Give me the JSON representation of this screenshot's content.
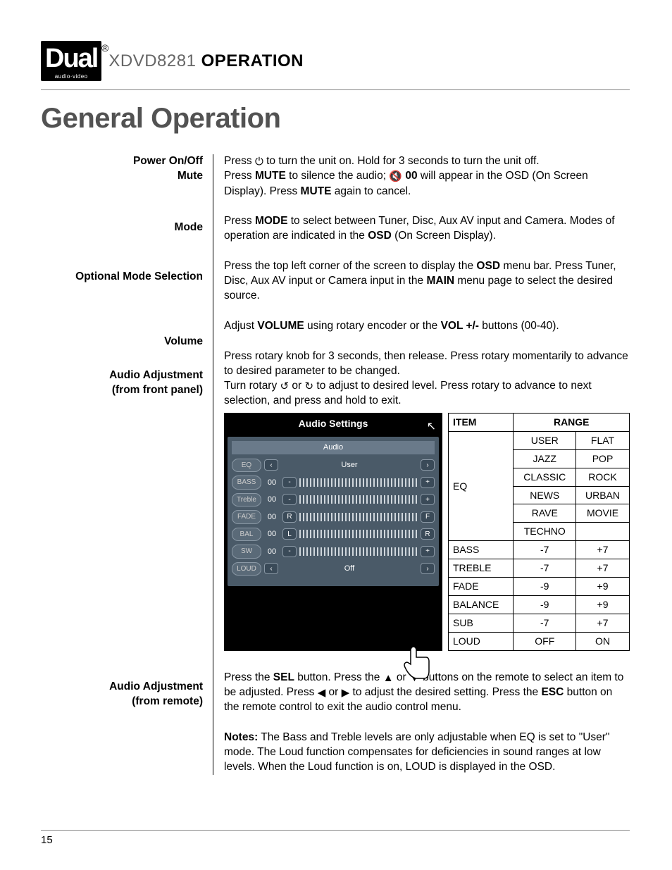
{
  "logo": {
    "text": "Dual",
    "sub": "audio·video",
    "reg": "®"
  },
  "header": {
    "model": "XDVD8281",
    "operation": "OPERATION"
  },
  "page_title": "General Operation",
  "sections": {
    "power": {
      "label1": "Power On/Off",
      "label2": "Mute",
      "text1a": "Press ",
      "text1b": " to turn the unit on. Hold for 3 seconds to turn the unit off.",
      "text2a": "Press ",
      "mute": "MUTE",
      "text2b": " to silence the audio; ",
      "osd00": " 00",
      "text2c": " will appear in the OSD (On Screen Display). Press ",
      "text2d": " again to cancel."
    },
    "mode": {
      "label": "Mode",
      "t1": "Press ",
      "kw": "MODE",
      "t2": " to select between Tuner, Disc, Aux AV input and Camera. Modes of operation are indicated in the ",
      "osd": "OSD",
      "t3": " (On Screen Display)."
    },
    "optional": {
      "label": "Optional Mode Selection",
      "t1": "Press the top left corner of the screen to display the ",
      "osd": "OSD",
      "t2": " menu bar. Press Tuner, Disc, Aux AV input or Camera input in the ",
      "main": "MAIN",
      "t3": " menu page to select the desired source."
    },
    "volume": {
      "label": "Volume",
      "t1": "Adjust ",
      "kw": "VOLUME",
      "t2": " using rotary encoder or the ",
      "kw2": "VOL +/-",
      "t3": " buttons (00-40)."
    },
    "audio_front": {
      "label1": "Audio Adjustment",
      "label2": "(from front panel)",
      "t1": "Press rotary knob for 3 seconds, then release. Press rotary momentarily to advance to desired parameter to be changed.",
      "t2a": "Turn rotary ",
      "t2b": " or ",
      "t2c": " to adjust to desired level. Press rotary to advance to next selection, and press and hold to exit."
    },
    "audio_remote": {
      "label1": "Audio Adjustment",
      "label2": "(from remote)",
      "t1a": "Press the ",
      "sel": "SEL",
      "t1b": " button. Press the ",
      "t1c": " or ",
      "t1d": " buttons on the remote to select an item to be adjusted. Press ",
      "t1e": " or ",
      "t1f": " to adjust the desired setting. Press the ",
      "esc": "ESC",
      "t1g": " button on the remote control to exit the audio control menu.",
      "notes_label": "Notes:",
      "notes": " The Bass and Treble levels are only adjustable when EQ is set to \"User\" mode. The Loud function compensates for deficiencies in sound ranges at low levels. When the Loud function is on, LOUD is displayed in the OSD."
    }
  },
  "osd": {
    "title": "Audio Settings",
    "top": "Audio",
    "rows": [
      {
        "label": "EQ",
        "value": "User",
        "mode": "arrows"
      },
      {
        "label": "BASS",
        "value": "00",
        "left": "-",
        "right": "+"
      },
      {
        "label": "Treble",
        "value": "00",
        "left": "-",
        "right": "+"
      },
      {
        "label": "FADE",
        "value": "00",
        "left": "R",
        "right": "F"
      },
      {
        "label": "BAL",
        "value": "00",
        "left": "L",
        "right": "R"
      },
      {
        "label": "SW",
        "value": "00",
        "left": "-",
        "right": "+"
      },
      {
        "label": "LOUD",
        "value": "Off",
        "mode": "arrows"
      }
    ]
  },
  "range_table": {
    "headers": [
      "ITEM",
      "RANGE"
    ],
    "eq_label": "EQ",
    "eq_values": [
      [
        "USER",
        "FLAT"
      ],
      [
        "JAZZ",
        "POP"
      ],
      [
        "CLASSIC",
        "ROCK"
      ],
      [
        "NEWS",
        "URBAN"
      ],
      [
        "RAVE",
        "MOVIE"
      ],
      [
        "TECHNO",
        ""
      ]
    ],
    "rows": [
      [
        "BASS",
        "-7",
        "+7"
      ],
      [
        "TREBLE",
        "-7",
        "+7"
      ],
      [
        "FADE",
        "-9",
        "+9"
      ],
      [
        "BALANCE",
        "-9",
        "+9"
      ],
      [
        "SUB",
        "-7",
        "+7"
      ],
      [
        "LOUD",
        "OFF",
        "ON"
      ]
    ]
  },
  "page_number": "15"
}
